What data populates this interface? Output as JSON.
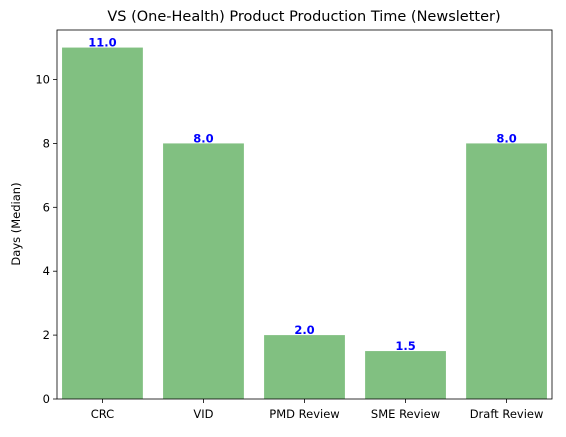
{
  "chart_data": {
    "type": "bar",
    "title": "VS (One-Health) Product Production Time (Newsletter)",
    "xlabel": "",
    "ylabel": "Days (Median)",
    "categories": [
      "CRC",
      "VID",
      "PMD Review",
      "SME Review",
      "Draft Review"
    ],
    "values": [
      11.0,
      8.0,
      2.0,
      1.5,
      8.0
    ],
    "data_labels": [
      "11.0",
      "8.0",
      "2.0",
      "1.5",
      "8.0"
    ],
    "yticks": [
      0,
      2,
      4,
      6,
      8,
      10
    ],
    "ylim": [
      0,
      11.55
    ],
    "grid": false,
    "legend": "none",
    "bar_color": "#81c081",
    "label_color": "#0000ff",
    "axis_color": "#000000"
  }
}
